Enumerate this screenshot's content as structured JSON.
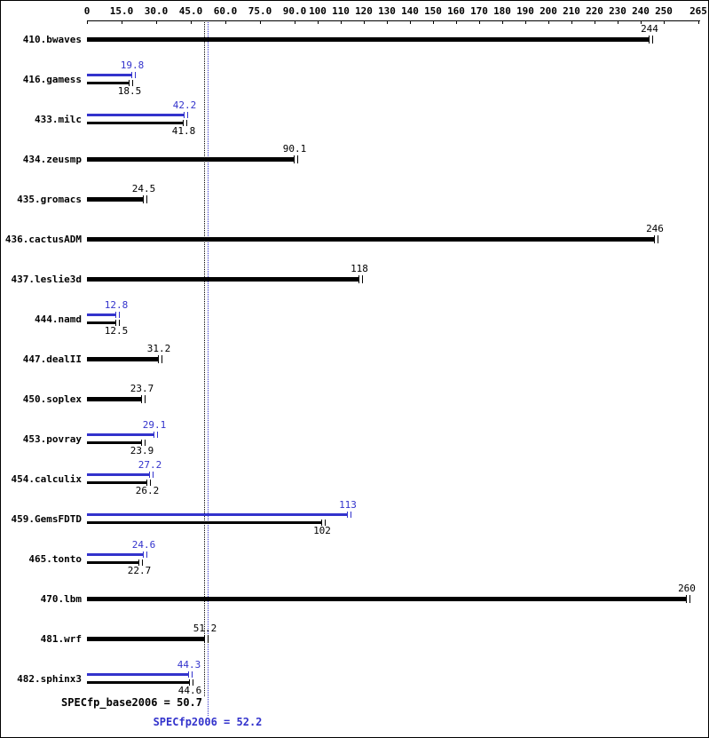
{
  "chart_data": {
    "type": "bar",
    "orientation": "horizontal",
    "title": "",
    "xlabel": "",
    "ylabel": "",
    "xlim": [
      0,
      265
    ],
    "grid": false,
    "x_ticks": [
      0,
      15,
      30,
      45,
      60,
      75,
      90,
      100,
      110,
      120,
      130,
      140,
      150,
      160,
      170,
      180,
      190,
      200,
      210,
      220,
      230,
      240,
      250,
      265
    ],
    "x_tick_labels": [
      "0",
      "15.0",
      "30.0",
      "45.0",
      "60.0",
      "75.0",
      "90.0",
      "100",
      "110",
      "120",
      "130",
      "140",
      "150",
      "160",
      "170",
      "180",
      "190",
      "200",
      "210",
      "220",
      "230",
      "240",
      "250",
      "265"
    ],
    "series_legend": [
      "peak (blue)",
      "base (black)"
    ],
    "benchmarks": [
      {
        "name": "410.bwaves",
        "base": 244,
        "peak": null,
        "base_label": "244",
        "peak_label": null
      },
      {
        "name": "416.gamess",
        "base": 18.5,
        "peak": 19.8,
        "base_label": "18.5",
        "peak_label": "19.8"
      },
      {
        "name": "433.milc",
        "base": 41.8,
        "peak": 42.2,
        "base_label": "41.8",
        "peak_label": "42.2"
      },
      {
        "name": "434.zeusmp",
        "base": 90.1,
        "peak": null,
        "base_label": "90.1",
        "peak_label": null
      },
      {
        "name": "435.gromacs",
        "base": 24.5,
        "peak": null,
        "base_label": "24.5",
        "peak_label": null
      },
      {
        "name": "436.cactusADM",
        "base": 246,
        "peak": null,
        "base_label": "246",
        "peak_label": null
      },
      {
        "name": "437.leslie3d",
        "base": 118,
        "peak": null,
        "base_label": "118",
        "peak_label": null
      },
      {
        "name": "444.namd",
        "base": 12.5,
        "peak": 12.8,
        "base_label": "12.5",
        "peak_label": "12.8"
      },
      {
        "name": "447.dealII",
        "base": 31.2,
        "peak": null,
        "base_label": "31.2",
        "peak_label": null
      },
      {
        "name": "450.soplex",
        "base": 23.7,
        "peak": null,
        "base_label": "23.7",
        "peak_label": null
      },
      {
        "name": "453.povray",
        "base": 23.9,
        "peak": 29.1,
        "base_label": "23.9",
        "peak_label": "29.1"
      },
      {
        "name": "454.calculix",
        "base": 26.2,
        "peak": 27.2,
        "base_label": "26.2",
        "peak_label": "27.2"
      },
      {
        "name": "459.GemsFDTD",
        "base": 102,
        "peak": 113,
        "base_label": "102",
        "peak_label": "113"
      },
      {
        "name": "465.tonto",
        "base": 22.7,
        "peak": 24.6,
        "base_label": "22.7",
        "peak_label": "24.6"
      },
      {
        "name": "470.lbm",
        "base": 260,
        "peak": null,
        "base_label": "260",
        "peak_label": null
      },
      {
        "name": "481.wrf",
        "base": 51.2,
        "peak": null,
        "base_label": "51.2",
        "peak_label": null
      },
      {
        "name": "482.sphinx3",
        "base": 44.6,
        "peak": 44.3,
        "base_label": "44.6",
        "peak_label": "44.3"
      }
    ],
    "summary": {
      "base_label": "SPECfp_base2006 = 50.7",
      "base_value": 50.7,
      "peak_label": "SPECfp2006 = 52.2",
      "peak_value": 52.2
    },
    "colors": {
      "base": "#000000",
      "peak": "#3333cc",
      "background": "#ffffff"
    }
  }
}
